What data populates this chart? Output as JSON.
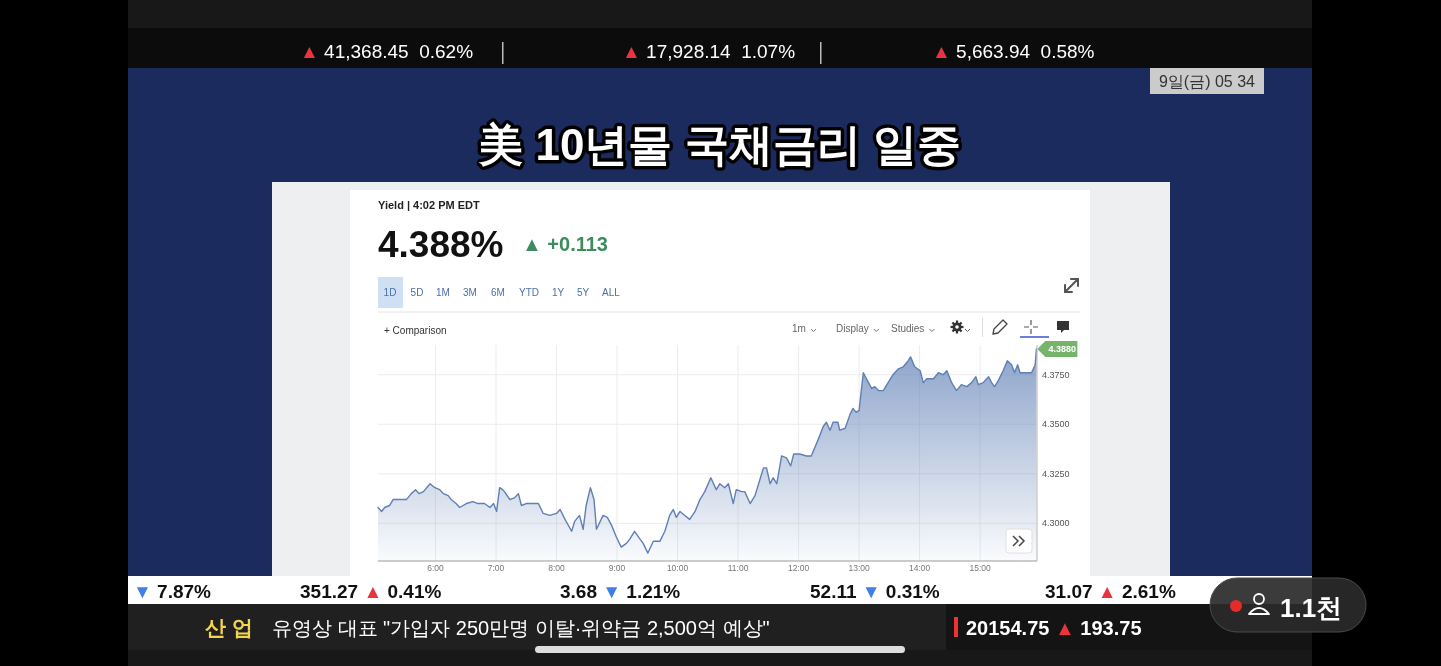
{
  "chart_data": {
    "type": "area",
    "title": "美 10년물 국채금리 일중",
    "subtitle": "Yield | 4:02 PM EDT",
    "x": [
      5.05,
      5.11,
      5.16,
      5.24,
      5.3,
      5.52,
      5.6,
      5.67,
      5.73,
      5.8,
      5.91,
      5.99,
      6.07,
      6.13,
      6.21,
      6.26,
      6.34,
      6.4,
      6.51,
      6.62,
      6.7,
      6.81,
      6.9,
      6.96,
      7.01,
      7.06,
      7.11,
      7.14,
      7.23,
      7.31,
      7.37,
      7.42,
      7.5,
      7.61,
      7.7,
      7.78,
      7.89,
      8.0,
      8.06,
      8.14,
      8.25,
      8.3,
      8.38,
      8.44,
      8.49,
      8.56,
      8.62,
      8.66,
      8.77,
      8.84,
      8.91,
      8.99,
      9.07,
      9.16,
      9.21,
      9.29,
      9.38,
      9.43,
      9.51,
      9.6,
      9.71,
      9.79,
      9.87,
      9.93,
      9.98,
      10.04,
      10.12,
      10.2,
      10.29,
      10.37,
      10.45,
      10.55,
      10.64,
      10.7,
      10.78,
      10.84,
      10.92,
      10.97,
      11.06,
      11.11,
      11.2,
      11.28,
      11.36,
      11.42,
      11.47,
      11.53,
      11.58,
      11.64,
      11.72,
      11.8,
      11.87,
      11.92,
      12.02,
      12.13,
      12.21,
      12.32,
      12.41,
      12.46,
      12.52,
      12.57,
      12.65,
      12.68,
      12.77,
      12.85,
      12.9,
      12.95,
      13.0,
      13.04,
      13.07,
      13.12,
      13.21,
      13.26,
      13.32,
      13.4,
      13.48,
      13.56,
      13.65,
      13.73,
      13.81,
      13.85,
      13.92,
      14.01,
      14.06,
      14.12,
      14.23,
      14.31,
      14.39,
      14.45,
      14.53,
      14.61,
      14.69,
      14.78,
      14.86,
      14.93,
      14.97,
      15.05,
      15.14,
      15.19,
      15.24,
      15.3,
      15.38,
      15.45,
      15.52,
      15.57,
      15.62,
      15.66,
      15.77,
      15.85,
      15.91,
      15.93
    ],
    "series": [
      {
        "color": "#5f7fb5",
        "values": [
          4.308,
          4.306,
          4.308,
          4.309,
          4.312,
          4.312,
          4.315,
          4.317,
          4.315,
          4.316,
          4.32,
          4.318,
          4.317,
          4.315,
          4.314,
          4.312,
          4.31,
          4.308,
          4.31,
          4.311,
          4.31,
          4.31,
          4.308,
          4.31,
          4.306,
          4.318,
          4.317,
          4.316,
          4.312,
          4.313,
          4.315,
          4.309,
          4.31,
          4.31,
          4.31,
          4.305,
          4.304,
          4.305,
          4.307,
          4.302,
          4.296,
          4.301,
          4.304,
          4.297,
          4.309,
          4.318,
          4.312,
          4.297,
          4.304,
          4.303,
          4.299,
          4.293,
          4.288,
          4.29,
          4.292,
          4.296,
          4.292,
          4.29,
          4.285,
          4.291,
          4.291,
          4.296,
          4.304,
          4.307,
          4.303,
          4.306,
          4.304,
          4.302,
          4.306,
          4.312,
          4.316,
          4.323,
          4.317,
          4.32,
          4.318,
          4.32,
          4.31,
          4.317,
          4.316,
          4.316,
          4.31,
          4.314,
          4.322,
          4.328,
          4.328,
          4.32,
          4.323,
          4.32,
          4.334,
          4.333,
          4.329,
          4.335,
          4.335,
          4.334,
          4.334,
          4.342,
          4.349,
          4.351,
          4.347,
          4.351,
          4.351,
          4.347,
          4.348,
          4.355,
          4.358,
          4.356,
          4.357,
          4.368,
          4.376,
          4.373,
          4.368,
          4.369,
          4.367,
          4.367,
          4.371,
          4.375,
          4.378,
          4.379,
          4.382,
          4.384,
          4.379,
          4.377,
          4.371,
          4.373,
          4.373,
          4.376,
          4.375,
          4.377,
          4.371,
          4.367,
          4.37,
          4.369,
          4.371,
          4.374,
          4.37,
          4.371,
          4.374,
          4.371,
          4.369,
          4.372,
          4.377,
          4.382,
          4.38,
          4.376,
          4.38,
          4.376,
          4.376,
          4.376,
          4.38,
          4.388
        ]
      }
    ],
    "xlim": [
      5.05,
      15.94
    ],
    "ylim": [
      4.281,
      4.39
    ],
    "xticks": [
      {
        "value": 6,
        "label": "6:00"
      },
      {
        "value": 7,
        "label": "7:00"
      },
      {
        "value": 8,
        "label": "8:00"
      },
      {
        "value": 9,
        "label": "9:00"
      },
      {
        "value": 10,
        "label": "10:00"
      },
      {
        "value": 11,
        "label": "11:00"
      },
      {
        "value": 12,
        "label": "12:00"
      },
      {
        "value": 13,
        "label": "13:00"
      },
      {
        "value": 14,
        "label": "14:00"
      },
      {
        "value": 15,
        "label": "15:00"
      }
    ],
    "yticks": [
      {
        "value": 4.3,
        "label": "4.3000"
      },
      {
        "value": 4.325,
        "label": "4.3250"
      },
      {
        "value": 4.35,
        "label": "4.3500"
      },
      {
        "value": 4.375,
        "label": "4.3750"
      }
    ],
    "grid": true,
    "annotations": [
      "4.388%",
      "▲ +0.113",
      "1D",
      "5D",
      "1M",
      "3M",
      "6M",
      "YTD",
      "1Y",
      "5Y",
      "ALL",
      "+ Comparison",
      "1m",
      "Display",
      "Studies",
      "▲ 41,368.45  0.62%",
      "▲ 17,928.14  1.07%",
      "▲ 5,663.94  0.58%",
      "9일(금) 05 34",
      "▼ 7.87%",
      "351.27 ▲ 0.41%",
      "3.68 ▼ 1.21%",
      "52.11 ▼ 0.31%",
      "31.07 ▲ 2.61%",
      "산 업",
      "유영상 대표 \"가입자 250만명 이탈·위약금 2,500억 예상\"",
      "20154.75 ▲ 193.75",
      "1.1천",
      {
        "text": "4.3880",
        "x": 15.93,
        "y": 4.388
      }
    ]
  }
}
